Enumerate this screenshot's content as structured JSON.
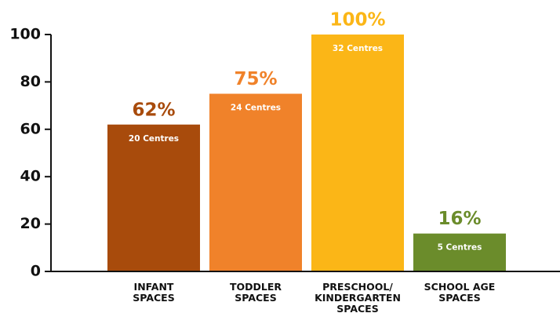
{
  "chart_data": {
    "type": "bar",
    "categories": [
      "INFANT\nSPACES",
      "TODDLER\nSPACES",
      "PRESCHOOL/\nKINDERGARTEN\nSPACES",
      "SCHOOL AGE\nSPACES"
    ],
    "values": [
      62,
      75,
      100,
      16
    ],
    "value_labels": [
      "62%",
      "75%",
      "100%",
      "16%"
    ],
    "bar_notes": [
      "20 Centres",
      "24 Centres",
      "32 Centres",
      "5 Centres"
    ],
    "colors": [
      "#a84b0c",
      "#f0822a",
      "#fbb617",
      "#6b8c2b"
    ],
    "ylim": [
      0,
      100
    ],
    "yticks": [
      0,
      20,
      40,
      60,
      80,
      100
    ],
    "grid": false
  }
}
